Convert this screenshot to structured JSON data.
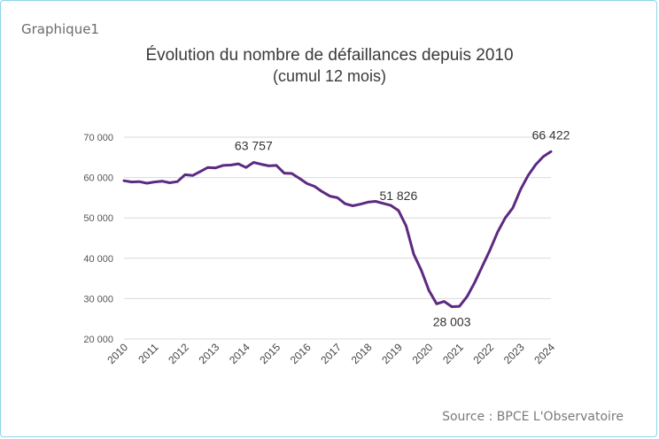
{
  "figure_label": "Graphique1",
  "source": "Source : BPCE L'Observatoire",
  "chart_data": {
    "type": "line",
    "title": "Évolution du nombre de défaillances depuis 2010",
    "subtitle": "(cumul 12 mois)",
    "xlabel": "",
    "ylabel": "",
    "xlim": [
      2010,
      2024
    ],
    "ylim": [
      20000,
      70000
    ],
    "y_ticks": [
      20000,
      30000,
      40000,
      50000,
      60000,
      70000
    ],
    "y_tick_labels": [
      "20 000",
      "30 000",
      "40 000",
      "50 000",
      "60 000",
      "70 000"
    ],
    "x_tick_labels": [
      "2010",
      "2011",
      "2012",
      "2013",
      "2014",
      "2015",
      "2016",
      "2017",
      "2018",
      "2019",
      "2020",
      "2021",
      "2022",
      "2023",
      "2024"
    ],
    "grid": "horizontal",
    "colors": {
      "line": "#5c2a82",
      "grid": "#d9d9d9",
      "text": "#3a3a3a"
    },
    "series": [
      {
        "x": [
          2010.0,
          2010.25,
          2010.5,
          2010.75,
          2011.0,
          2011.25,
          2011.5,
          2011.75,
          2012.0,
          2012.25,
          2012.5,
          2012.75,
          2013.0,
          2013.25,
          2013.5,
          2013.75,
          2014.0,
          2014.25,
          2014.5,
          2014.75,
          2015.0,
          2015.25,
          2015.5,
          2015.75,
          2016.0,
          2016.25,
          2016.5,
          2016.75,
          2017.0,
          2017.25,
          2017.5,
          2017.75,
          2018.0,
          2018.25,
          2018.5,
          2018.75,
          2019.0,
          2019.25,
          2019.5,
          2019.75,
          2020.0,
          2020.25,
          2020.5,
          2020.75,
          2021.0,
          2021.25,
          2021.5,
          2021.75,
          2022.0,
          2022.25,
          2022.5,
          2022.75,
          2023.0,
          2023.25,
          2023.5,
          2023.75,
          2024.0
        ],
        "y": [
          59200,
          58900,
          59000,
          58600,
          58900,
          59100,
          58700,
          59000,
          60700,
          60500,
          61500,
          62500,
          62400,
          63000,
          63100,
          63400,
          62500,
          63757,
          63300,
          62900,
          63000,
          61100,
          61000,
          59800,
          58500,
          57800,
          56500,
          55400,
          55000,
          53500,
          53000,
          53400,
          53900,
          54100,
          53600,
          53100,
          51826,
          48000,
          41000,
          37000,
          32000,
          28700,
          29300,
          28003,
          28100,
          30500,
          34000,
          38000,
          42000,
          46500,
          50000,
          52500,
          57000,
          60500,
          63200,
          65200,
          66422
        ]
      }
    ],
    "annotations": [
      {
        "x": 2014.25,
        "y": 63757,
        "label": "63 757"
      },
      {
        "x": 2019.0,
        "y": 51826,
        "label": "51 826"
      },
      {
        "x": 2020.75,
        "y": 28003,
        "label": "28 003"
      },
      {
        "x": 2024.0,
        "y": 66422,
        "label": "66 422"
      }
    ]
  }
}
